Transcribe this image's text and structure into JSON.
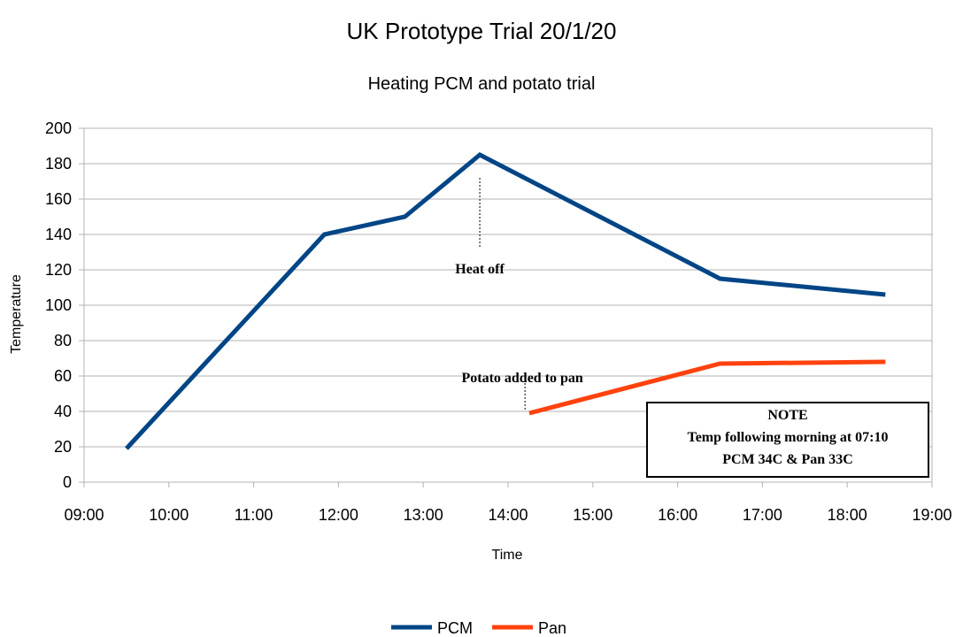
{
  "chart_data": {
    "type": "line",
    "title": "UK Prototype Trial 20/1/20",
    "subtitle": "Heating PCM and potato trial",
    "xlabel": "Time",
    "ylabel": "Temperature",
    "xlim": [
      "09:00",
      "19:00"
    ],
    "ylim": [
      0,
      200
    ],
    "x_ticks": [
      "09:00",
      "10:00",
      "11:00",
      "12:00",
      "13:00",
      "14:00",
      "15:00",
      "16:00",
      "17:00",
      "18:00",
      "19:00"
    ],
    "y_ticks": [
      0,
      20,
      40,
      60,
      80,
      100,
      120,
      140,
      160,
      180,
      200
    ],
    "grid": "horizontal",
    "legend_position": "bottom",
    "series": [
      {
        "name": "PCM",
        "color": "#004586",
        "points": [
          {
            "x": "09:30",
            "y": 19
          },
          {
            "x": "11:50",
            "y": 140
          },
          {
            "x": "12:47",
            "y": 150
          },
          {
            "x": "13:40",
            "y": 185
          },
          {
            "x": "16:30",
            "y": 115
          },
          {
            "x": "18:27",
            "y": 106
          }
        ]
      },
      {
        "name": "Pan",
        "color": "#ff420e",
        "points": [
          {
            "x": "14:15",
            "y": 39
          },
          {
            "x": "16:30",
            "y": 67
          },
          {
            "x": "18:27",
            "y": 68
          }
        ]
      }
    ],
    "annotations": [
      {
        "text": "Heat off",
        "x": "13:40",
        "y_from": 172,
        "y_to": 132
      },
      {
        "text": "Potato added to pan",
        "x": "14:12",
        "y_from": 60,
        "y_to": 40
      }
    ],
    "note": {
      "heading": "NOTE",
      "lines": [
        "Temp following morning  at 07:10",
        "PCM 34C & Pan 33C"
      ]
    }
  }
}
